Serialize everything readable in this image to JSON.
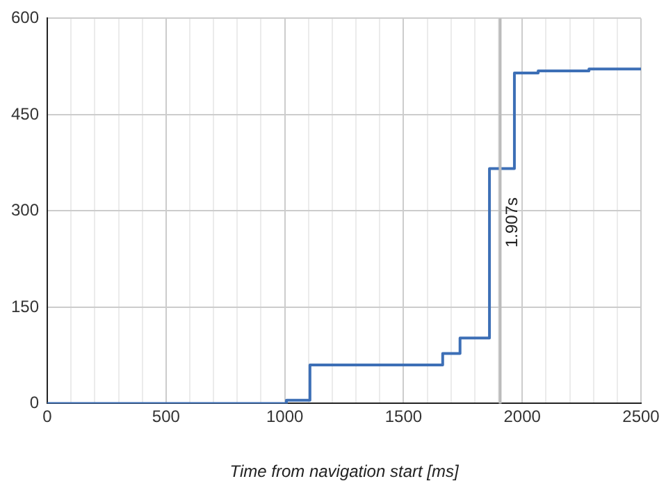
{
  "chart_data": {
    "type": "step",
    "xlabel": "Time from navigation start [ms]",
    "x": [
      0,
      1007,
      1106,
      1665,
      1738,
      1862,
      1967,
      2067,
      2281,
      2500
    ],
    "values": [
      0,
      5,
      60,
      78,
      102,
      366,
      515,
      518,
      521,
      521
    ],
    "color": "#3d6fb6",
    "xlim": [
      0,
      2500
    ],
    "xticks": [
      0,
      {
        "value": 100,
        "label": null
      },
      {
        "value": 200,
        "label": null
      },
      {
        "value": 300,
        "label": null
      },
      {
        "value": 400,
        "label": null
      },
      500,
      {
        "value": 600,
        "label": null
      },
      {
        "value": 700,
        "label": null
      },
      {
        "value": 800,
        "label": null
      },
      {
        "value": 900,
        "label": null
      },
      1000,
      {
        "value": 1100,
        "label": null
      },
      {
        "value": 1200,
        "label": null
      },
      {
        "value": 1300,
        "label": null
      },
      {
        "value": 1400,
        "label": null
      },
      1500,
      {
        "value": 1600,
        "label": null
      },
      {
        "value": 1700,
        "label": null
      },
      {
        "value": 1800,
        "label": null
      },
      {
        "value": 1900,
        "label": null
      },
      2000,
      {
        "value": 2100,
        "label": null
      },
      {
        "value": 2200,
        "label": null
      },
      {
        "value": 2300,
        "label": null
      },
      {
        "value": 2400,
        "label": null
      },
      2500
    ],
    "ylim": [
      0,
      600
    ],
    "yticks": [
      0,
      150,
      300,
      450,
      600
    ],
    "grid": true,
    "legend": false,
    "marker": "none",
    "line_style": "solid",
    "ref_lines": [
      {
        "axis": "x",
        "value": 1907,
        "label": "1.907s",
        "color": "#bbbbbb"
      }
    ]
  }
}
